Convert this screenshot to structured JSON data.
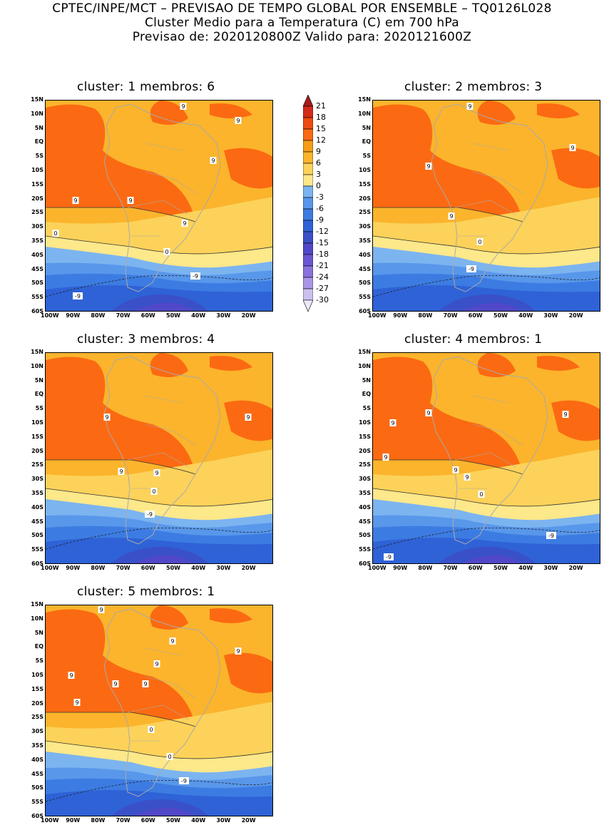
{
  "header": {
    "line1": "CPTEC/INPE/MCT – PREVISAO DE TEMPO GLOBAL POR ENSEMBLE – TQ0126L028",
    "line2": "Cluster Medio para a Temperatura (C) em 700 hPa",
    "line3": "Previsao de: 2020120800Z   Valido para: 2020121600Z"
  },
  "lat_labels": [
    "15N",
    "10N",
    "5N",
    "EQ",
    "5S",
    "10S",
    "15S",
    "20S",
    "25S",
    "30S",
    "35S",
    "40S",
    "45S",
    "50S",
    "55S",
    "60S"
  ],
  "lon_labels": [
    "100W",
    "90W",
    "80W",
    "70W",
    "60W",
    "50W",
    "40W",
    "30W",
    "20W"
  ],
  "panels": [
    {
      "title": "cluster: 1   membros: 6",
      "contours": [
        "9",
        "9",
        "9",
        "9",
        "9",
        "9",
        "0",
        "0",
        "-9",
        "-9"
      ]
    },
    {
      "title": "cluster: 2   membros: 3",
      "contours": [
        "9",
        "9",
        "9",
        "9",
        "0",
        "-9"
      ]
    },
    {
      "title": "cluster: 3   membros: 4",
      "contours": [
        "9",
        "9",
        "9",
        "9",
        "0",
        "-9"
      ]
    },
    {
      "title": "cluster: 4   membros: 1",
      "contours": [
        "9",
        "9",
        "9",
        "9",
        "9",
        "9",
        "0",
        "-9",
        "-9"
      ]
    },
    {
      "title": "cluster: 5   membros: 1",
      "contours": [
        "9",
        "9",
        "9",
        "9",
        "9",
        "9",
        "9",
        "9",
        "0",
        "0",
        "-9"
      ]
    }
  ],
  "colorbar": {
    "labels": [
      "21",
      "18",
      "15",
      "12",
      "9",
      "6",
      "3",
      "0",
      "-3",
      "-6",
      "-9",
      "-12",
      "-15",
      "-18",
      "-21",
      "-24",
      "-27",
      "-30"
    ],
    "colors": [
      "#a51c1c",
      "#d42a1a",
      "#ee4a10",
      "#fb6a12",
      "#f59d16",
      "#fbb42c",
      "#fcd25a",
      "#fde88a",
      "#7cb4f0",
      "#5897ea",
      "#3c7ce2",
      "#2e62d6",
      "#3a50c8",
      "#5048c8",
      "#6a56d2",
      "#8a72dc",
      "#aa96e6",
      "#ccc0f0",
      "#ece8f8"
    ]
  }
}
